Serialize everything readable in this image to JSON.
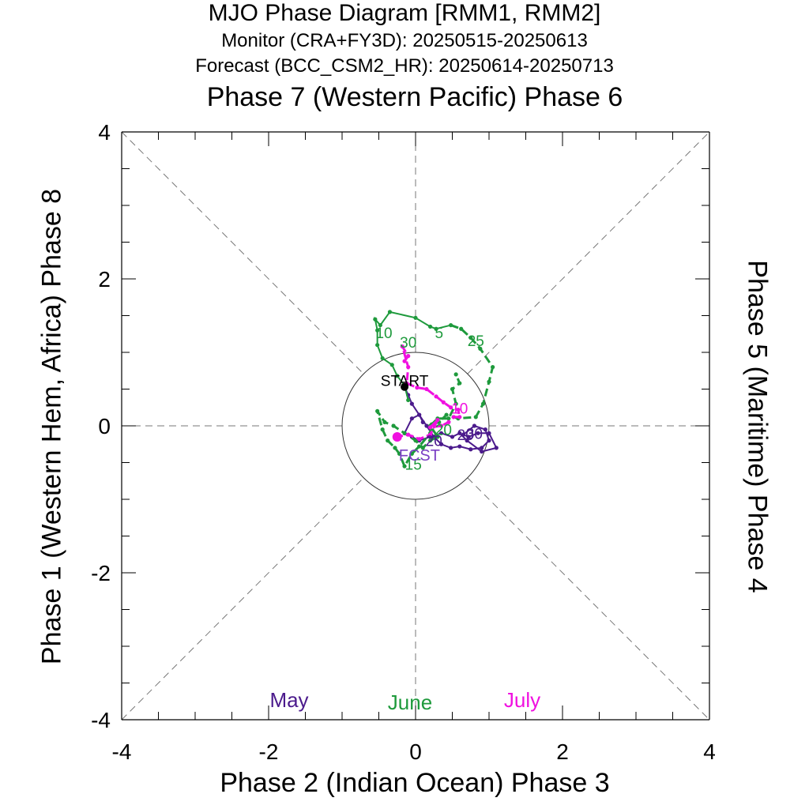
{
  "chart_data": {
    "type": "line",
    "title": "MJO Phase Diagram [RMM1, RMM2]",
    "subtitle_monitor": "Monitor (CRA+FY3D): 20250515-20250613",
    "subtitle_forecast": "Forecast (BCC_CSM2_HR): 20250614-20250713",
    "top_label": "Phase 7 (Western Pacific) Phase 6",
    "bottom_label": "Phase 2 (Indian Ocean) Phase 3",
    "left_label": "Phase 1 (Western Hem, Africa) Phase 8",
    "right_label": "Phase 5 (Maritime) Phase 4",
    "xlim": [
      -4,
      4
    ],
    "ylim": [
      -4,
      4
    ],
    "x_ticks": [
      "-4",
      "-2",
      "0",
      "2",
      "4"
    ],
    "y_ticks": [
      "-4",
      "-2",
      "0",
      "2",
      "4"
    ],
    "start_label": "START",
    "fcst_label": "FCST",
    "legend": [
      {
        "name": "May",
        "color": "#4B1A8C"
      },
      {
        "name": "June",
        "color": "#1E9A3C"
      },
      {
        "name": "July",
        "color": "#F010E0"
      }
    ],
    "series": [
      {
        "name": "May",
        "color": "#4B1A8C",
        "points": [
          [
            -0.15,
            0.53
          ],
          [
            -0.1,
            0.42
          ],
          [
            -0.05,
            0.3
          ],
          [
            0.05,
            0.15
          ],
          [
            0.15,
            0.0
          ],
          [
            0.25,
            -0.15
          ],
          [
            0.35,
            -0.25
          ],
          [
            0.48,
            -0.3
          ],
          [
            0.6,
            -0.28
          ],
          [
            0.75,
            -0.32
          ],
          [
            0.9,
            -0.3
          ],
          [
            1.0,
            -0.2
          ],
          [
            0.95,
            -0.05
          ],
          [
            0.8,
            0.0
          ],
          [
            0.65,
            -0.12
          ],
          [
            0.72,
            -0.15
          ],
          [
            0.85,
            -0.1
          ],
          [
            1.0,
            -0.1
          ],
          [
            1.1,
            -0.3
          ],
          [
            0.9,
            -0.35
          ],
          [
            0.7,
            -0.2
          ],
          [
            0.6,
            -0.1
          ],
          [
            0.5,
            -0.15
          ],
          [
            0.35,
            -0.1
          ],
          [
            0.2,
            -0.15
          ],
          [
            0.05,
            -0.2
          ],
          [
            -0.05,
            -0.15
          ],
          [
            -0.15,
            -0.1
          ],
          [
            -0.05,
            0.1
          ],
          [
            0.05,
            0.15
          ],
          [
            0.1,
            0.05
          ]
        ]
      },
      {
        "name": "June",
        "color": "#1E9A3C",
        "dash_after": 13,
        "points": [
          [
            -0.1,
            0.35
          ],
          [
            -0.15,
            0.55
          ],
          [
            -0.25,
            0.68
          ],
          [
            -0.32,
            0.83
          ],
          [
            -0.45,
            0.92
          ],
          [
            -0.52,
            1.1
          ],
          [
            -0.52,
            1.3
          ],
          [
            -0.55,
            1.45
          ],
          [
            -0.48,
            1.37
          ],
          [
            -0.35,
            1.55
          ],
          [
            0.0,
            1.47
          ],
          [
            0.2,
            1.35
          ],
          [
            0.28,
            1.32
          ],
          [
            0.48,
            1.37
          ],
          [
            0.62,
            1.32
          ],
          [
            0.75,
            1.2
          ],
          [
            0.88,
            1.05
          ],
          [
            1.05,
            0.8
          ],
          [
            1.0,
            0.6
          ],
          [
            0.92,
            0.3
          ],
          [
            0.82,
            0.12
          ],
          [
            0.58,
            0.1
          ],
          [
            0.42,
            0.15
          ],
          [
            0.32,
            0.05
          ],
          [
            0.22,
            0.02
          ],
          [
            0.2,
            -0.1
          ],
          [
            0.05,
            -0.28
          ],
          [
            -0.05,
            -0.38
          ],
          [
            -0.15,
            -0.55
          ],
          [
            -0.22,
            -0.38
          ],
          [
            -0.28,
            -0.3
          ],
          [
            -0.38,
            -0.2
          ],
          [
            -0.45,
            -0.05
          ],
          [
            -0.52,
            0.2
          ],
          [
            -0.42,
            0.05
          ],
          [
            -0.3,
            0.0
          ],
          [
            -0.15,
            -0.1
          ],
          [
            0.0,
            -0.2
          ],
          [
            0.1,
            -0.3
          ],
          [
            0.2,
            -0.2
          ],
          [
            0.3,
            -0.15
          ],
          [
            0.2,
            0.0
          ],
          [
            0.3,
            0.1
          ],
          [
            0.45,
            0.1
          ],
          [
            0.55,
            0.3
          ],
          [
            0.5,
            0.5
          ],
          [
            0.6,
            0.58
          ],
          [
            0.55,
            0.7
          ]
        ]
      },
      {
        "name": "July",
        "color": "#F010E0",
        "points": [
          [
            -0.15,
            0.88
          ],
          [
            -0.1,
            0.95
          ],
          [
            -0.18,
            1.08
          ],
          [
            -0.1,
            0.8
          ],
          [
            -0.12,
            0.58
          ],
          [
            0.02,
            0.52
          ],
          [
            0.15,
            0.5
          ],
          [
            0.28,
            0.4
          ],
          [
            0.38,
            0.32
          ],
          [
            0.48,
            0.25
          ],
          [
            0.58,
            0.22
          ],
          [
            0.6,
            0.12
          ],
          [
            0.52,
            0.12
          ],
          [
            0.45,
            0.05
          ],
          [
            0.35,
            0.0
          ],
          [
            0.2,
            -0.02
          ],
          [
            0.3,
            0.08
          ],
          [
            0.2,
            -0.12
          ],
          [
            0.05,
            -0.18
          ],
          [
            -0.1,
            -0.12
          ],
          [
            -0.25,
            -0.15
          ]
        ]
      }
    ],
    "day_labels": [
      {
        "text": "10",
        "series": "June",
        "x": -0.43,
        "y": 1.27
      },
      {
        "text": "30",
        "series": "June",
        "x": -0.1,
        "y": 1.14
      },
      {
        "text": "5",
        "series": "June",
        "x": 0.32,
        "y": 1.27
      },
      {
        "text": "25",
        "series": "June",
        "x": 0.82,
        "y": 1.16
      },
      {
        "text": "20",
        "series": "June",
        "x": 0.38,
        "y": -0.05
      },
      {
        "text": "15",
        "series": "June",
        "x": -0.03,
        "y": -0.52
      },
      {
        "text": "10",
        "series": "July",
        "x": 0.6,
        "y": 0.24
      },
      {
        "text": "20",
        "series": "May",
        "x": 0.25,
        "y": -0.2
      },
      {
        "text": "20",
        "series": "May",
        "x": 0.68,
        "y": -0.12
      },
      {
        "text": "30",
        "series": "May",
        "x": 0.8,
        "y": -0.1
      }
    ]
  }
}
